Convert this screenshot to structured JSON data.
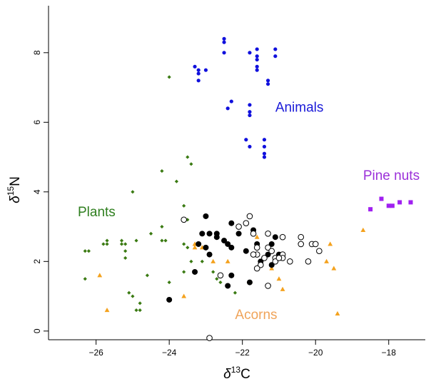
{
  "chart_data": {
    "type": "scatter",
    "xlim": [
      -27.3,
      -17.0
    ],
    "ylim": [
      -0.25,
      9.35
    ],
    "xticks": [
      -26,
      -24,
      -22,
      -20,
      -18
    ],
    "yticks": [
      0,
      2,
      4,
      6,
      8
    ],
    "xtick_labels": [
      "−26",
      "−24",
      "−22",
      "−20",
      "−18"
    ],
    "ytick_labels": [
      "0",
      "2",
      "4",
      "6",
      "8"
    ],
    "xlabel": {
      "prefix": "δ",
      "sup": "13",
      "base": "C"
    },
    "ylabel": {
      "prefix": "δ",
      "sup": "15",
      "base": "N"
    },
    "grid": false,
    "legend": "none",
    "group_labels": [
      {
        "text": "Animals",
        "x": -21.1,
        "y": 6.3,
        "color": "#1a1ad8"
      },
      {
        "text": "Pine nuts",
        "x": -18.7,
        "y": 4.35,
        "color": "#9b30d9"
      },
      {
        "text": "Plants",
        "x": -26.5,
        "y": 3.3,
        "color": "#2f7f1f"
      },
      {
        "text": "Acorns",
        "x": -22.2,
        "y": 0.35,
        "color": "#f0a45a"
      }
    ],
    "series": [
      {
        "marker": "dot",
        "color": "#1010dd",
        "points": [
          [
            -22.5,
            8.4
          ],
          [
            -22.5,
            8.3
          ],
          [
            -22.5,
            8.0
          ],
          [
            -21.8,
            8.0
          ],
          [
            -21.6,
            8.1
          ],
          [
            -21.6,
            7.9
          ],
          [
            -21.6,
            7.8
          ],
          [
            -21.1,
            8.1
          ],
          [
            -21.1,
            7.9
          ],
          [
            -21.6,
            7.6
          ],
          [
            -21.6,
            7.5
          ],
          [
            -23.3,
            7.6
          ],
          [
            -23.2,
            7.5
          ],
          [
            -23.2,
            7.4
          ],
          [
            -23.2,
            7.2
          ],
          [
            -23.0,
            7.5
          ],
          [
            -21.3,
            7.2
          ],
          [
            -21.3,
            7.1
          ],
          [
            -22.3,
            6.6
          ],
          [
            -22.4,
            6.4
          ],
          [
            -21.8,
            6.5
          ],
          [
            -21.8,
            6.3
          ],
          [
            -21.8,
            6.2
          ],
          [
            -21.9,
            5.5
          ],
          [
            -21.8,
            5.3
          ],
          [
            -21.4,
            5.5
          ],
          [
            -21.4,
            5.3
          ],
          [
            -21.4,
            5.1
          ],
          [
            -21.4,
            5.0
          ]
        ]
      },
      {
        "marker": "diamond",
        "color": "#3a7a12",
        "points": [
          [
            -24.0,
            7.3
          ],
          [
            -23.5,
            5.0
          ],
          [
            -23.4,
            4.8
          ],
          [
            -24.2,
            4.6
          ],
          [
            -23.8,
            4.3
          ],
          [
            -25.0,
            4.0
          ],
          [
            -23.6,
            3.6
          ],
          [
            -23.5,
            3.2
          ],
          [
            -24.2,
            3.0
          ],
          [
            -26.3,
            2.3
          ],
          [
            -26.2,
            2.3
          ],
          [
            -25.8,
            2.5
          ],
          [
            -25.7,
            2.5
          ],
          [
            -25.7,
            2.6
          ],
          [
            -25.3,
            2.6
          ],
          [
            -25.3,
            2.5
          ],
          [
            -25.2,
            2.5
          ],
          [
            -24.9,
            2.6
          ],
          [
            -24.5,
            2.8
          ],
          [
            -24.2,
            2.6
          ],
          [
            -24.1,
            2.6
          ],
          [
            -23.6,
            2.5
          ],
          [
            -23.5,
            2.4
          ],
          [
            -23.4,
            2.0
          ],
          [
            -23.1,
            2.0
          ],
          [
            -25.2,
            2.3
          ],
          [
            -25.2,
            2.1
          ],
          [
            -26.3,
            1.5
          ],
          [
            -24.6,
            1.6
          ],
          [
            -24.0,
            1.4
          ],
          [
            -23.6,
            1.7
          ],
          [
            -23.3,
            1.7
          ],
          [
            -22.8,
            1.7
          ],
          [
            -22.6,
            1.6
          ],
          [
            -22.6,
            1.4
          ],
          [
            -25.1,
            1.1
          ],
          [
            -25.0,
            1.0
          ],
          [
            -24.8,
            0.8
          ],
          [
            -24.8,
            0.6
          ],
          [
            -24.9,
            0.6
          ],
          [
            -22.2,
            1.1
          ],
          [
            -21.8,
            1.4
          ],
          [
            -22.7,
            1.5
          ]
        ]
      },
      {
        "marker": "triangle",
        "color": "#f4a21e",
        "points": [
          [
            -25.9,
            1.6
          ],
          [
            -25.7,
            0.6
          ],
          [
            -23.3,
            2.5
          ],
          [
            -23.3,
            2.4
          ],
          [
            -23.1,
            2.4
          ],
          [
            -22.8,
            2.0
          ],
          [
            -22.4,
            2.0
          ],
          [
            -23.6,
            1.0
          ],
          [
            -21.6,
            2.7
          ],
          [
            -21.2,
            2.5
          ],
          [
            -21.2,
            1.8
          ],
          [
            -21.0,
            1.5
          ],
          [
            -20.9,
            1.2
          ],
          [
            -19.6,
            2.5
          ],
          [
            -19.7,
            2.0
          ],
          [
            -19.5,
            1.8
          ],
          [
            -19.4,
            0.5
          ],
          [
            -18.7,
            2.9
          ],
          [
            -21.8,
            1.4
          ]
        ]
      },
      {
        "marker": "filled-circle",
        "color": "#000000",
        "points": [
          [
            -23.0,
            3.3
          ],
          [
            -23.1,
            2.8
          ],
          [
            -22.9,
            2.8
          ],
          [
            -22.7,
            2.8
          ],
          [
            -22.7,
            2.7
          ],
          [
            -22.3,
            3.1
          ],
          [
            -22.4,
            2.5
          ],
          [
            -22.3,
            2.4
          ],
          [
            -22.1,
            2.8
          ],
          [
            -21.9,
            2.3
          ],
          [
            -21.7,
            2.9
          ],
          [
            -21.6,
            2.5
          ],
          [
            -21.5,
            2.0
          ],
          [
            -21.2,
            2.5
          ],
          [
            -21.1,
            2.7
          ],
          [
            -21.0,
            2.2
          ],
          [
            -23.2,
            2.5
          ],
          [
            -23.0,
            2.4
          ],
          [
            -22.9,
            2.2
          ],
          [
            -23.3,
            1.7
          ],
          [
            -22.3,
            1.6
          ],
          [
            -22.4,
            1.3
          ],
          [
            -21.8,
            1.4
          ],
          [
            -24.0,
            0.9
          ],
          [
            -21.2,
            1.9
          ],
          [
            -22.5,
            2.6
          ],
          [
            -21.3,
            2.2
          ]
        ]
      },
      {
        "marker": "open-circle",
        "color": "#000000",
        "points": [
          [
            -23.6,
            3.2
          ],
          [
            -21.8,
            3.3
          ],
          [
            -21.9,
            3.1
          ],
          [
            -22.1,
            3.0
          ],
          [
            -21.7,
            2.8
          ],
          [
            -21.3,
            2.8
          ],
          [
            -20.9,
            2.7
          ],
          [
            -20.4,
            2.7
          ],
          [
            -21.6,
            2.4
          ],
          [
            -21.6,
            2.2
          ],
          [
            -21.3,
            2.4
          ],
          [
            -20.9,
            2.2
          ],
          [
            -20.4,
            2.5
          ],
          [
            -20.1,
            2.5
          ],
          [
            -20.0,
            2.5
          ],
          [
            -21.2,
            2.3
          ],
          [
            -21.1,
            2.1
          ],
          [
            -20.9,
            2.1
          ],
          [
            -21.5,
            1.9
          ],
          [
            -21.6,
            1.8
          ],
          [
            -21.4,
            2.1
          ],
          [
            -21.1,
            2.0
          ],
          [
            -20.7,
            2.0
          ],
          [
            -20.2,
            2.0
          ],
          [
            -19.9,
            2.3
          ],
          [
            -21.3,
            1.3
          ],
          [
            -22.6,
            1.6
          ],
          [
            -22.9,
            -0.2
          ],
          [
            -21.0,
            2.1
          ],
          [
            -21.7,
            2.2
          ]
        ]
      },
      {
        "marker": "square",
        "color": "#a020f0",
        "points": [
          [
            -18.5,
            3.5
          ],
          [
            -18.2,
            3.8
          ],
          [
            -18.0,
            3.6
          ],
          [
            -17.9,
            3.6
          ],
          [
            -17.7,
            3.7
          ],
          [
            -17.4,
            3.7
          ]
        ]
      }
    ]
  }
}
